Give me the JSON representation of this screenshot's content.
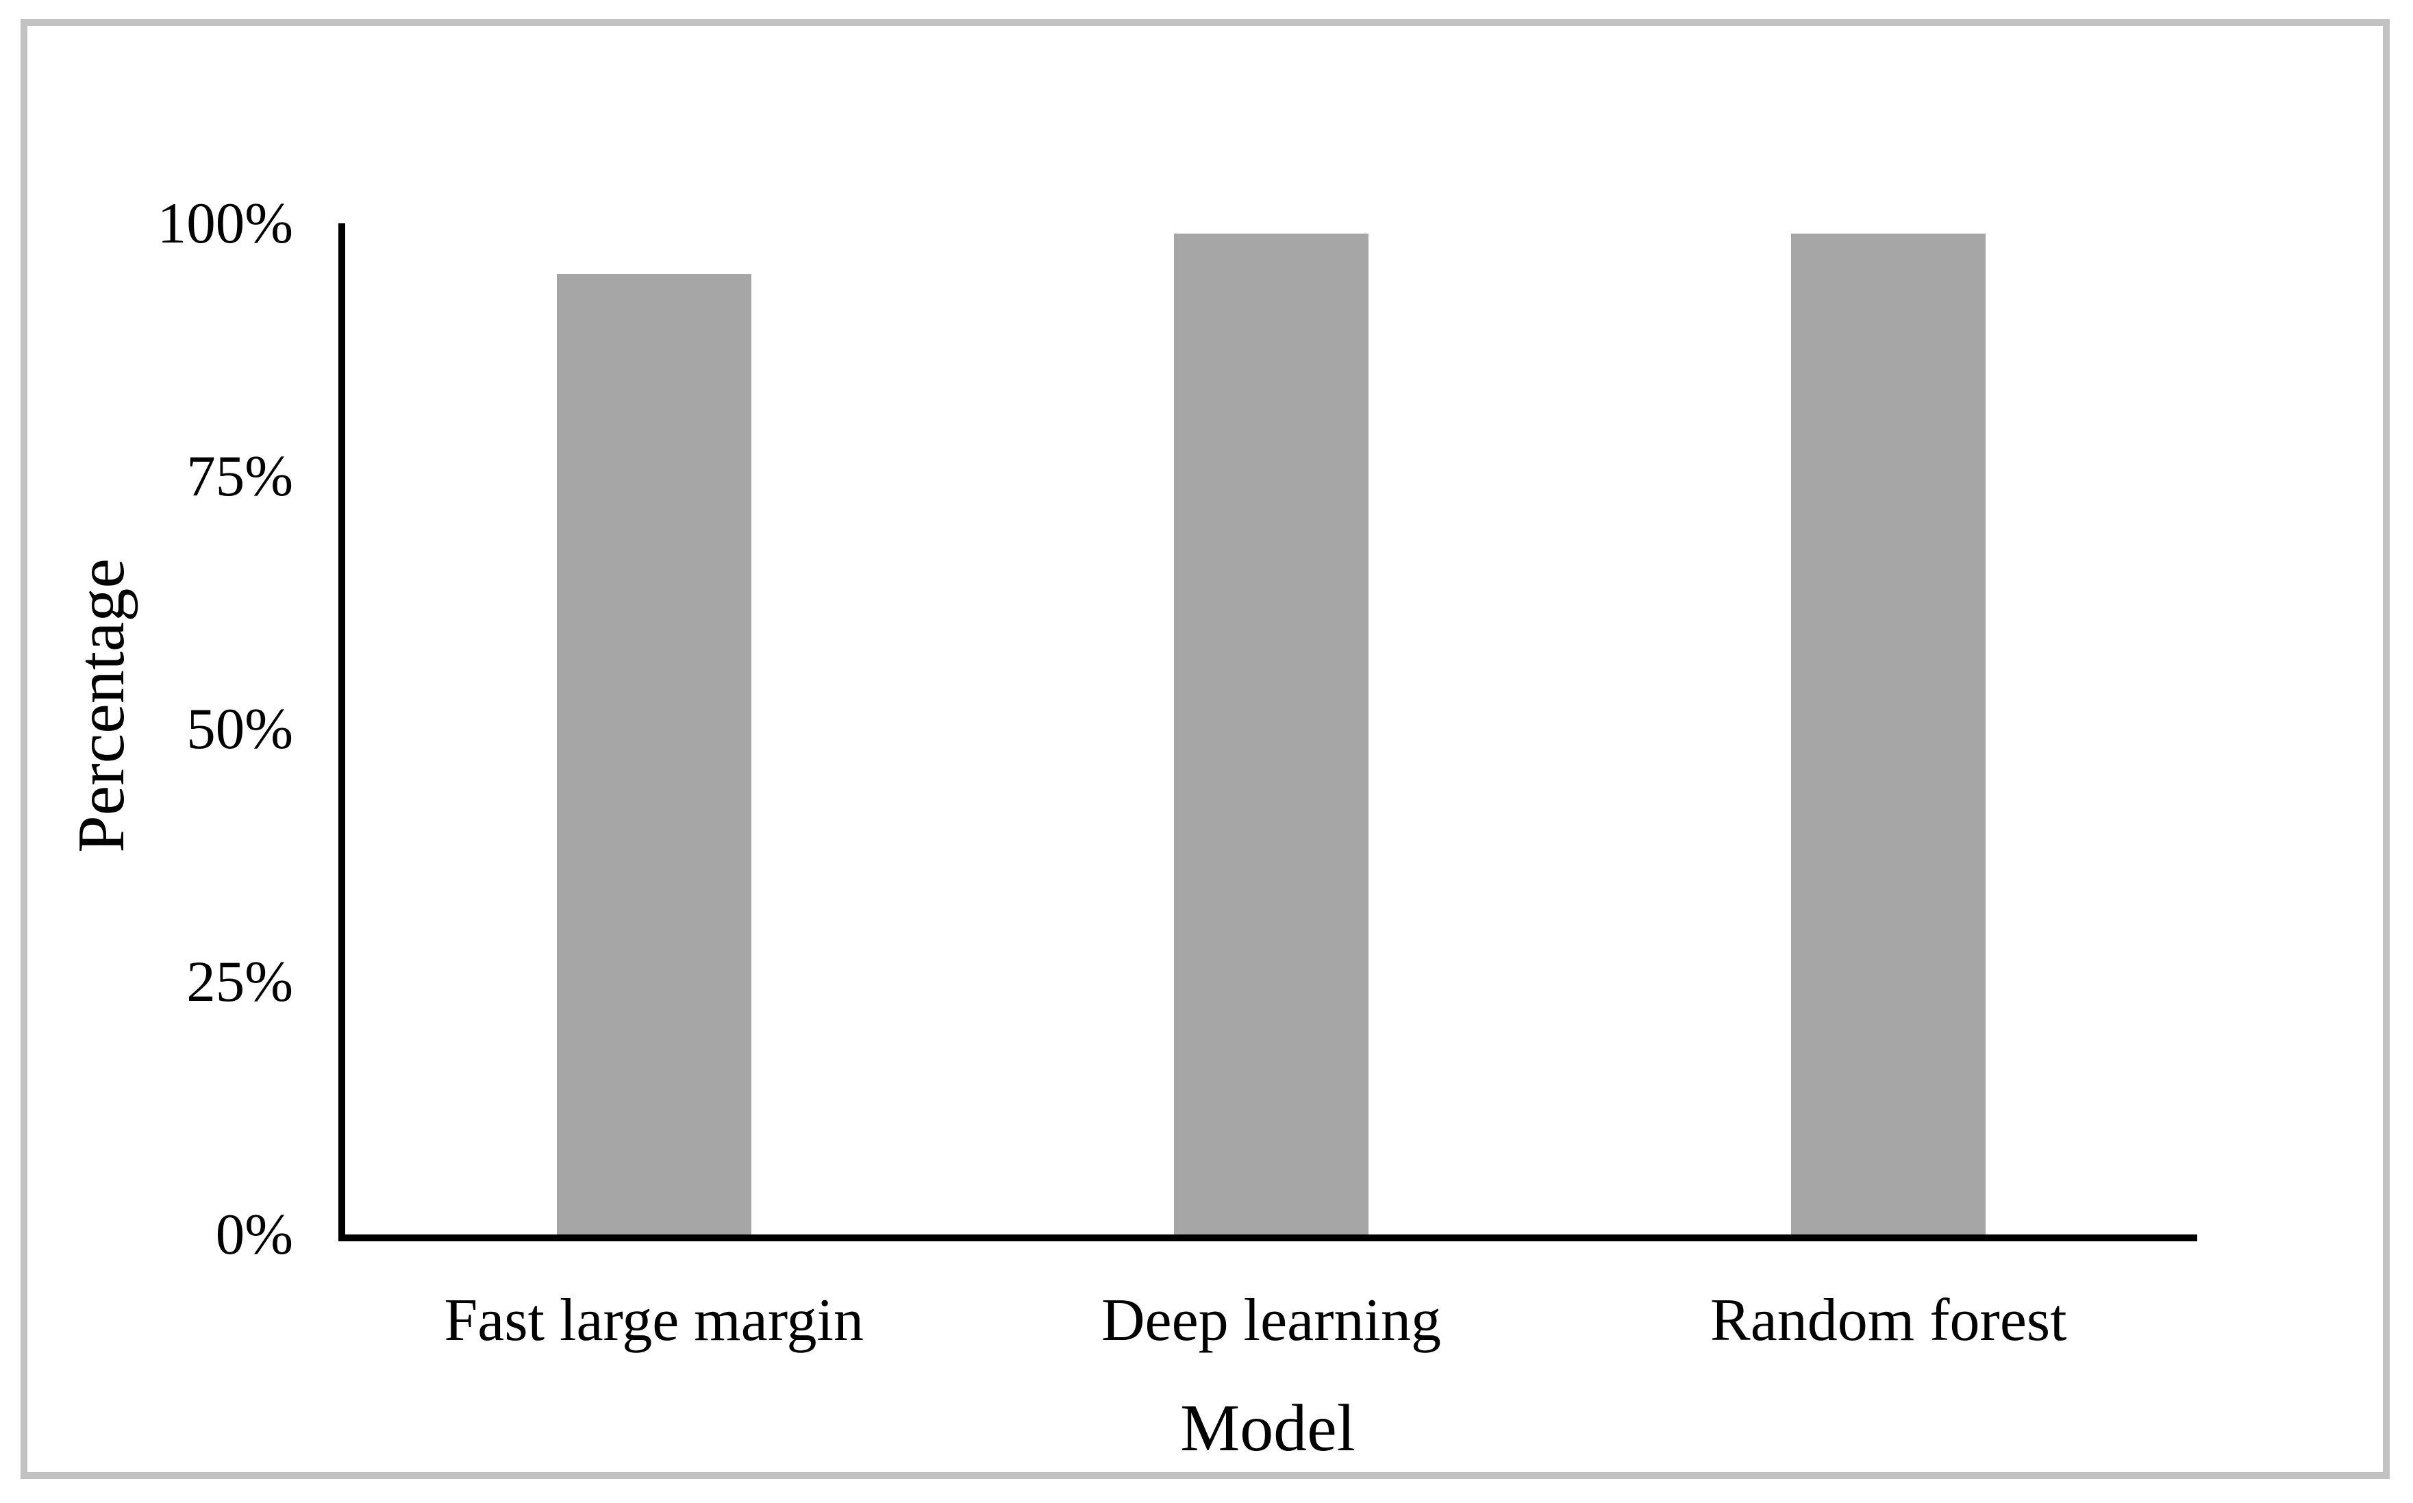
{
  "figure": {
    "background": "#ffffff",
    "frame_color": "#c2c2c2"
  },
  "chart_data": {
    "type": "bar",
    "title": "",
    "categories": [
      "Fast large margin",
      "Deep learning",
      "Random forest"
    ],
    "values": [
      95,
      99,
      99
    ],
    "xlabel": "Model",
    "ylabel": "Percentage",
    "ylim": [
      0,
      100
    ],
    "y_ticks": [
      {
        "value": 0,
        "label": "0%"
      },
      {
        "value": 25,
        "label": "25%"
      },
      {
        "value": 50,
        "label": "50%"
      },
      {
        "value": 75,
        "label": "75%"
      },
      {
        "value": 100,
        "label": "100%"
      }
    ],
    "grid": false,
    "legend": false,
    "bar_color": "#a6a6a6",
    "axis_color": "#000000",
    "text_color": "#000000"
  }
}
